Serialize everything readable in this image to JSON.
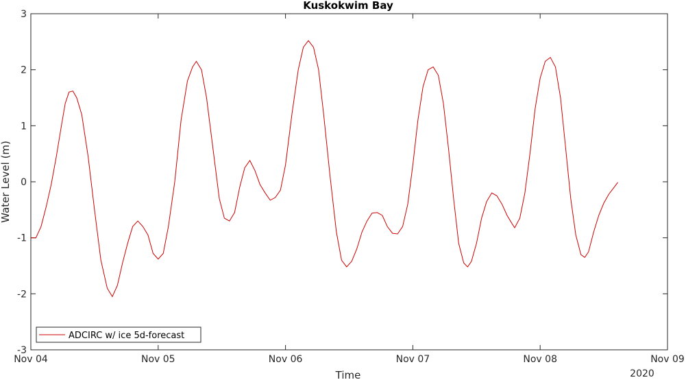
{
  "chart_data": {
    "type": "line",
    "title": "Kuskokwim Bay",
    "xlabel": "Time",
    "ylabel": "Water Level (m)",
    "x_unit": "days since Nov 04 2020",
    "xlim": [
      0,
      5
    ],
    "ylim": [
      -3,
      3
    ],
    "xticks": [
      {
        "value": 0,
        "label": "Nov 04"
      },
      {
        "value": 1,
        "label": "Nov 05"
      },
      {
        "value": 2,
        "label": "Nov 06"
      },
      {
        "value": 3,
        "label": "Nov 07"
      },
      {
        "value": 4,
        "label": "Nov 08"
      },
      {
        "value": 5,
        "label": "Nov 09"
      }
    ],
    "x_secondary_label": "2020",
    "yticks": [
      -3,
      -2,
      -1,
      0,
      1,
      2,
      3
    ],
    "grid": false,
    "legend_position": "bottom-left",
    "series": [
      {
        "name": "ADCIRC w/ ice 5d-forecast",
        "color": "#cc0000",
        "points": [
          [
            0.0,
            -1.0
          ],
          [
            0.04,
            -1.0
          ],
          [
            0.08,
            -0.8
          ],
          [
            0.12,
            -0.45
          ],
          [
            0.16,
            -0.05
          ],
          [
            0.2,
            0.45
          ],
          [
            0.24,
            1.0
          ],
          [
            0.27,
            1.4
          ],
          [
            0.3,
            1.6
          ],
          [
            0.33,
            1.62
          ],
          [
            0.36,
            1.5
          ],
          [
            0.4,
            1.2
          ],
          [
            0.45,
            0.45
          ],
          [
            0.5,
            -0.5
          ],
          [
            0.55,
            -1.4
          ],
          [
            0.6,
            -1.9
          ],
          [
            0.64,
            -2.05
          ],
          [
            0.68,
            -1.85
          ],
          [
            0.72,
            -1.45
          ],
          [
            0.76,
            -1.1
          ],
          [
            0.8,
            -0.8
          ],
          [
            0.84,
            -0.7
          ],
          [
            0.88,
            -0.8
          ],
          [
            0.92,
            -0.95
          ],
          [
            0.96,
            -1.28
          ],
          [
            1.0,
            -1.38
          ],
          [
            1.04,
            -1.28
          ],
          [
            1.08,
            -0.8
          ],
          [
            1.13,
            0.0
          ],
          [
            1.18,
            1.1
          ],
          [
            1.23,
            1.8
          ],
          [
            1.27,
            2.05
          ],
          [
            1.3,
            2.15
          ],
          [
            1.34,
            2.0
          ],
          [
            1.38,
            1.5
          ],
          [
            1.43,
            0.6
          ],
          [
            1.48,
            -0.3
          ],
          [
            1.52,
            -0.65
          ],
          [
            1.56,
            -0.7
          ],
          [
            1.6,
            -0.55
          ],
          [
            1.64,
            -0.1
          ],
          [
            1.68,
            0.25
          ],
          [
            1.72,
            0.38
          ],
          [
            1.76,
            0.2
          ],
          [
            1.8,
            -0.05
          ],
          [
            1.84,
            -0.2
          ],
          [
            1.88,
            -0.33
          ],
          [
            1.92,
            -0.28
          ],
          [
            1.96,
            -0.15
          ],
          [
            2.0,
            0.3
          ],
          [
            2.05,
            1.2
          ],
          [
            2.1,
            2.0
          ],
          [
            2.14,
            2.4
          ],
          [
            2.18,
            2.52
          ],
          [
            2.22,
            2.4
          ],
          [
            2.26,
            2.0
          ],
          [
            2.3,
            1.2
          ],
          [
            2.35,
            0.1
          ],
          [
            2.4,
            -0.9
          ],
          [
            2.44,
            -1.4
          ],
          [
            2.48,
            -1.52
          ],
          [
            2.52,
            -1.42
          ],
          [
            2.56,
            -1.2
          ],
          [
            2.6,
            -0.9
          ],
          [
            2.64,
            -0.7
          ],
          [
            2.68,
            -0.56
          ],
          [
            2.72,
            -0.55
          ],
          [
            2.76,
            -0.6
          ],
          [
            2.8,
            -0.8
          ],
          [
            2.84,
            -0.92
          ],
          [
            2.88,
            -0.93
          ],
          [
            2.92,
            -0.8
          ],
          [
            2.96,
            -0.4
          ],
          [
            3.0,
            0.3
          ],
          [
            3.04,
            1.1
          ],
          [
            3.08,
            1.7
          ],
          [
            3.12,
            2.0
          ],
          [
            3.16,
            2.05
          ],
          [
            3.2,
            1.9
          ],
          [
            3.24,
            1.4
          ],
          [
            3.28,
            0.6
          ],
          [
            3.32,
            -0.3
          ],
          [
            3.36,
            -1.1
          ],
          [
            3.4,
            -1.45
          ],
          [
            3.43,
            -1.52
          ],
          [
            3.46,
            -1.42
          ],
          [
            3.5,
            -1.1
          ],
          [
            3.54,
            -0.65
          ],
          [
            3.58,
            -0.35
          ],
          [
            3.62,
            -0.2
          ],
          [
            3.66,
            -0.25
          ],
          [
            3.7,
            -0.4
          ],
          [
            3.74,
            -0.6
          ],
          [
            3.78,
            -0.75
          ],
          [
            3.8,
            -0.82
          ],
          [
            3.84,
            -0.65
          ],
          [
            3.88,
            -0.2
          ],
          [
            3.92,
            0.5
          ],
          [
            3.96,
            1.3
          ],
          [
            4.0,
            1.85
          ],
          [
            4.04,
            2.15
          ],
          [
            4.08,
            2.22
          ],
          [
            4.12,
            2.05
          ],
          [
            4.16,
            1.5
          ],
          [
            4.2,
            0.6
          ],
          [
            4.24,
            -0.3
          ],
          [
            4.28,
            -0.95
          ],
          [
            4.32,
            -1.3
          ],
          [
            4.35,
            -1.35
          ],
          [
            4.38,
            -1.25
          ],
          [
            4.42,
            -0.9
          ],
          [
            4.46,
            -0.6
          ],
          [
            4.5,
            -0.38
          ],
          [
            4.54,
            -0.22
          ],
          [
            4.58,
            -0.1
          ],
          [
            4.61,
            -0.01
          ]
        ]
      }
    ]
  }
}
